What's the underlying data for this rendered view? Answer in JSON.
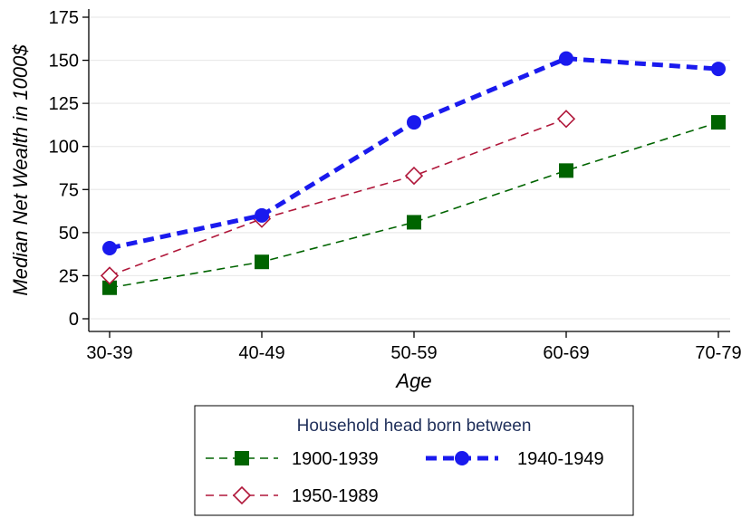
{
  "chart_data": {
    "type": "line",
    "title": "",
    "xlabel": "Age",
    "ylabel": "Median Net Wealth in 1000$",
    "categories": [
      "30-39",
      "40-49",
      "50-59",
      "60-69",
      "70-79"
    ],
    "ylim": [
      0,
      175
    ],
    "yticks": [
      0,
      25,
      50,
      75,
      100,
      125,
      150,
      175
    ],
    "grid": true,
    "legend": {
      "title": "Household head born between",
      "placement": "bottom"
    },
    "series": [
      {
        "name": "1900-1939",
        "color": "#006400",
        "marker": "square",
        "line": "dashed-thin",
        "values": [
          18,
          33,
          56,
          86,
          114
        ]
      },
      {
        "name": "1940-1949",
        "color": "#1a1aee",
        "marker": "circle",
        "line": "dashed-thick",
        "values": [
          41,
          60,
          114,
          151,
          145
        ]
      },
      {
        "name": "1950-1989",
        "color": "#b0173a",
        "marker": "hollow-diamond",
        "line": "dashed-thin",
        "values": [
          25,
          58,
          83,
          116,
          null
        ]
      }
    ]
  }
}
